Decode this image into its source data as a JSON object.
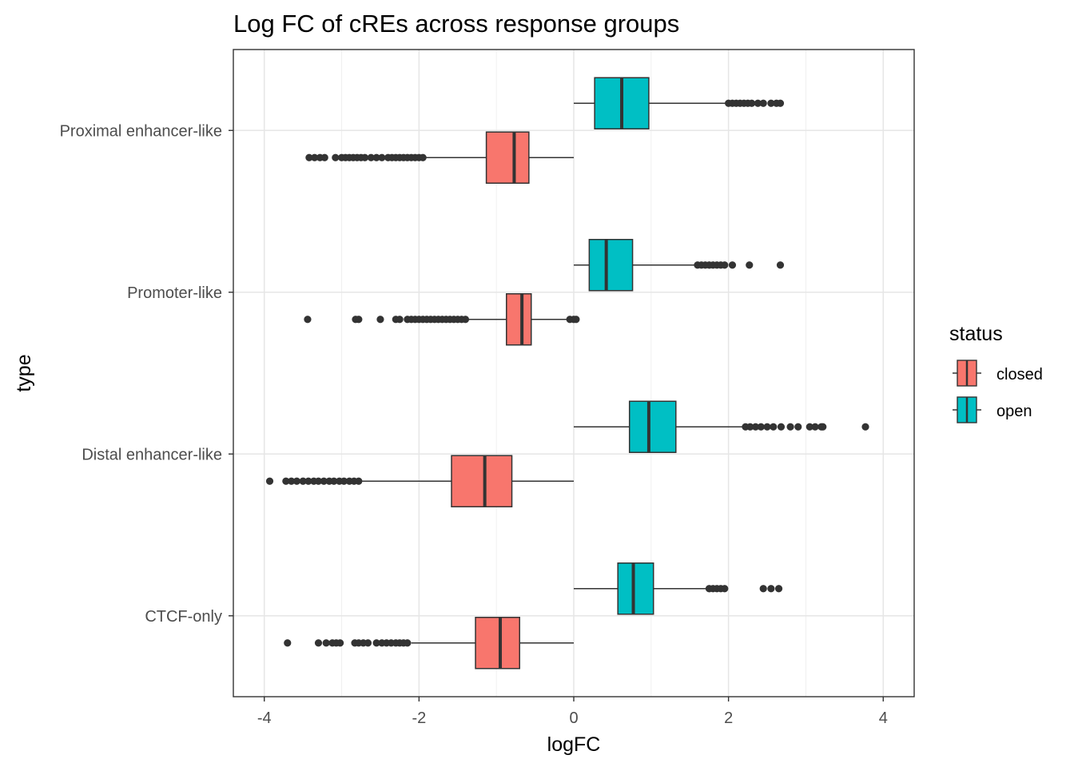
{
  "chart_data": {
    "type": "boxplot",
    "orientation": "horizontal",
    "title": "Log FC of cREs across response groups",
    "xlabel": "logFC",
    "ylabel": "type",
    "xlim": [
      -4.4,
      4.4
    ],
    "x_ticks": [
      -4,
      -2,
      0,
      2,
      4
    ],
    "x_tick_labels": [
      "-4",
      "-2",
      "0",
      "2",
      "4"
    ],
    "categories": [
      "Proximal enhancer-like",
      "Promoter-like",
      "Distal enhancer-like",
      "CTCF-only"
    ],
    "grid": true,
    "legend": {
      "title": "status",
      "position": "right",
      "entries": [
        {
          "label": "closed",
          "color": "#F8766D"
        },
        {
          "label": "open",
          "color": "#00BFC4"
        }
      ]
    },
    "series": [
      {
        "name": "closed",
        "color": "#F8766D",
        "boxes": [
          {
            "category": "Proximal enhancer-like",
            "whisker_low": -1.92,
            "q1": -1.13,
            "median": -0.77,
            "q3": -0.58,
            "whisker_high": 0.0,
            "outliers": [
              -3.42,
              -3.35,
              -3.28,
              -3.22,
              -3.08,
              -3.0,
              -2.95,
              -2.9,
              -2.85,
              -2.8,
              -2.75,
              -2.7,
              -2.62,
              -2.55,
              -2.48,
              -2.4,
              -2.35,
              -2.3,
              -2.25,
              -2.2,
              -2.15,
              -2.1,
              -2.05,
              -2.0,
              -1.95
            ]
          },
          {
            "category": "Promoter-like",
            "whisker_low": -1.38,
            "q1": -0.87,
            "median": -0.67,
            "q3": -0.55,
            "whisker_high": -0.03,
            "outliers": [
              -3.44,
              -2.82,
              -2.78,
              -2.5,
              -2.3,
              -2.25,
              -2.15,
              -2.1,
              -2.05,
              -2.0,
              -1.95,
              -1.9,
              -1.85,
              -1.8,
              -1.75,
              -1.7,
              -1.65,
              -1.6,
              -1.55,
              -1.5,
              -1.45,
              -1.4,
              -0.05,
              0.0,
              0.03
            ]
          },
          {
            "category": "Distal enhancer-like",
            "whisker_low": -2.75,
            "q1": -1.58,
            "median": -1.15,
            "q3": -0.8,
            "whisker_high": 0.0,
            "outliers": [
              -3.93,
              -3.72,
              -3.65,
              -3.58,
              -3.5,
              -3.43,
              -3.36,
              -3.3,
              -3.23,
              -3.16,
              -3.1,
              -3.03,
              -2.97,
              -2.9,
              -2.84,
              -2.78
            ]
          },
          {
            "category": "CTCF-only",
            "whisker_low": -2.1,
            "q1": -1.27,
            "median": -0.95,
            "q3": -0.7,
            "whisker_high": 0.0,
            "outliers": [
              -3.7,
              -3.3,
              -3.2,
              -3.12,
              -3.07,
              -3.02,
              -2.83,
              -2.78,
              -2.72,
              -2.66,
              -2.55,
              -2.48,
              -2.42,
              -2.36,
              -2.3,
              -2.25,
              -2.2,
              -2.15
            ]
          }
        ]
      },
      {
        "name": "open",
        "color": "#00BFC4",
        "boxes": [
          {
            "category": "Proximal enhancer-like",
            "whisker_low": 0.0,
            "q1": 0.27,
            "median": 0.62,
            "q3": 0.97,
            "whisker_high": 2.0,
            "outliers": [
              2.0,
              2.05,
              2.1,
              2.15,
              2.2,
              2.25,
              2.3,
              2.38,
              2.45,
              2.55,
              2.62,
              2.67
            ]
          },
          {
            "category": "Promoter-like",
            "whisker_low": 0.0,
            "q1": 0.2,
            "median": 0.42,
            "q3": 0.76,
            "whisker_high": 1.58,
            "outliers": [
              1.6,
              1.65,
              1.7,
              1.75,
              1.8,
              1.85,
              1.9,
              1.95,
              2.05,
              2.27,
              2.67
            ]
          },
          {
            "category": "Distal enhancer-like",
            "whisker_low": 0.0,
            "q1": 0.72,
            "median": 0.97,
            "q3": 1.32,
            "whisker_high": 2.2,
            "outliers": [
              2.22,
              2.28,
              2.35,
              2.42,
              2.5,
              2.58,
              2.68,
              2.8,
              2.9,
              3.05,
              3.12,
              3.2,
              3.22,
              3.77
            ]
          },
          {
            "category": "CTCF-only",
            "whisker_low": 0.0,
            "q1": 0.57,
            "median": 0.77,
            "q3": 1.03,
            "whisker_high": 1.72,
            "outliers": [
              1.75,
              1.8,
              1.85,
              1.9,
              1.95,
              2.45,
              2.55,
              2.65
            ]
          }
        ]
      }
    ]
  }
}
